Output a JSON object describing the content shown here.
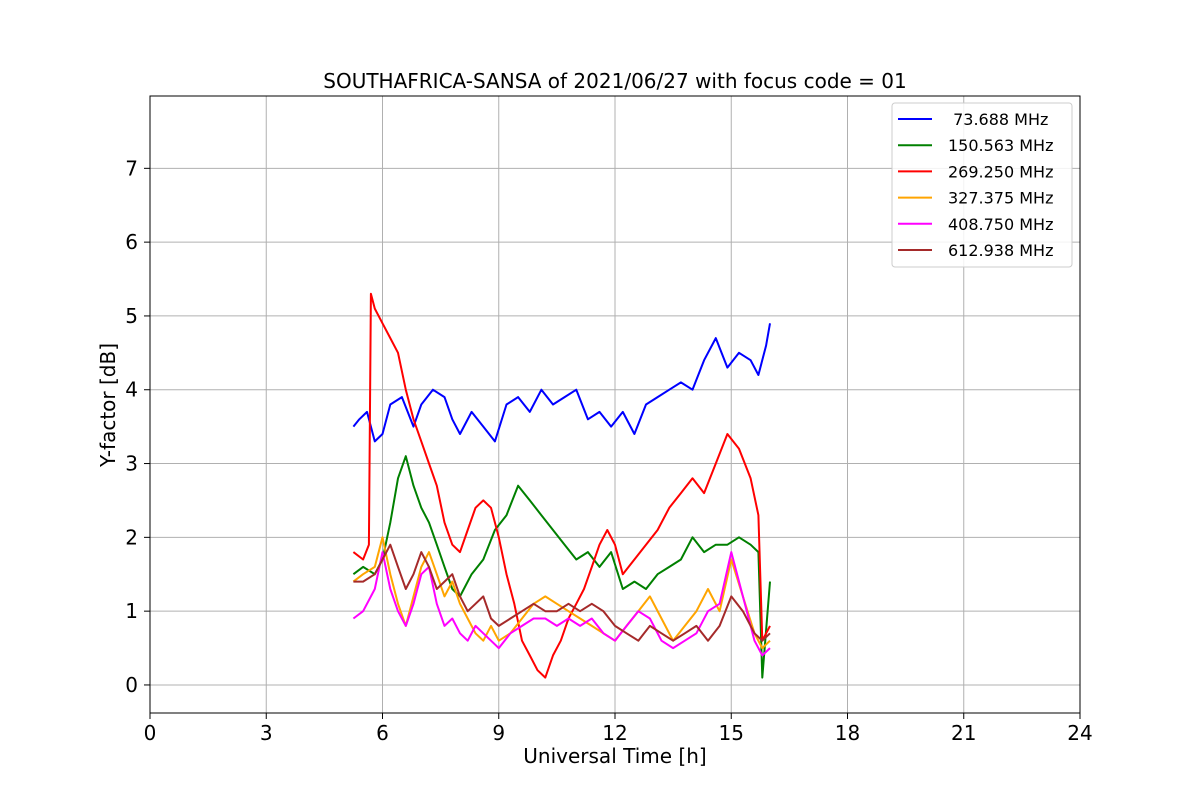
{
  "chart_data": {
    "type": "line",
    "title": "SOUTHAFRICA-SANSA of 2021/06/27 with focus code = 01",
    "xlabel": "Universal Time [h]",
    "ylabel": "Y-factor [dB]",
    "xlim": [
      0,
      24
    ],
    "ylim": [
      -0.38,
      7.98
    ],
    "xticks": [
      0,
      3,
      6,
      9,
      12,
      15,
      18,
      21,
      24
    ],
    "xtick_labels": [
      "0",
      "3",
      "6",
      "9",
      "12",
      "15",
      "18",
      "21",
      "24"
    ],
    "yticks": [
      0,
      1,
      2,
      3,
      4,
      5,
      6,
      7
    ],
    "ytick_labels": [
      "0",
      "1",
      "2",
      "3",
      "4",
      "5",
      "6",
      "7"
    ],
    "grid": true,
    "legend_position": "top-right",
    "series": [
      {
        "name": " 73.688 MHz",
        "color": "#0000ff",
        "x": [
          5.25,
          5.4,
          5.6,
          5.8,
          6.0,
          6.2,
          6.5,
          6.8,
          7.0,
          7.3,
          7.6,
          7.8,
          8.0,
          8.3,
          8.6,
          8.9,
          9.2,
          9.5,
          9.8,
          10.1,
          10.4,
          10.7,
          11.0,
          11.3,
          11.6,
          11.9,
          12.2,
          12.5,
          12.8,
          13.1,
          13.4,
          13.7,
          14.0,
          14.3,
          14.6,
          14.9,
          15.2,
          15.5,
          15.7,
          15.9,
          16.0
        ],
        "y": [
          3.5,
          3.6,
          3.7,
          3.3,
          3.4,
          3.8,
          3.9,
          3.5,
          3.8,
          4.0,
          3.9,
          3.6,
          3.4,
          3.7,
          3.5,
          3.3,
          3.8,
          3.9,
          3.7,
          4.0,
          3.8,
          3.9,
          4.0,
          3.6,
          3.7,
          3.5,
          3.7,
          3.4,
          3.8,
          3.9,
          4.0,
          4.1,
          4.0,
          4.4,
          4.7,
          4.3,
          4.5,
          4.4,
          4.2,
          4.6,
          4.9
        ]
      },
      {
        "name": "150.563 MHz",
        "color": "#008000",
        "x": [
          5.25,
          5.5,
          5.8,
          6.0,
          6.2,
          6.4,
          6.6,
          6.8,
          7.0,
          7.2,
          7.4,
          7.6,
          7.8,
          8.0,
          8.3,
          8.6,
          8.9,
          9.2,
          9.5,
          9.8,
          10.1,
          10.4,
          10.7,
          11.0,
          11.3,
          11.6,
          11.9,
          12.2,
          12.5,
          12.8,
          13.1,
          13.4,
          13.7,
          14.0,
          14.3,
          14.6,
          14.9,
          15.2,
          15.5,
          15.7,
          15.8,
          16.0
        ],
        "y": [
          1.5,
          1.6,
          1.5,
          1.7,
          2.2,
          2.8,
          3.1,
          2.7,
          2.4,
          2.2,
          1.9,
          1.6,
          1.3,
          1.2,
          1.5,
          1.7,
          2.1,
          2.3,
          2.7,
          2.5,
          2.3,
          2.1,
          1.9,
          1.7,
          1.8,
          1.6,
          1.8,
          1.3,
          1.4,
          1.3,
          1.5,
          1.6,
          1.7,
          2.0,
          1.8,
          1.9,
          1.9,
          2.0,
          1.9,
          1.8,
          0.1,
          1.4
        ]
      },
      {
        "name": "269.250 MHz",
        "color": "#ff0000",
        "x": [
          5.25,
          5.5,
          5.65,
          5.7,
          5.8,
          6.0,
          6.2,
          6.4,
          6.6,
          6.8,
          7.0,
          7.2,
          7.4,
          7.6,
          7.8,
          8.0,
          8.2,
          8.4,
          8.6,
          8.8,
          9.0,
          9.2,
          9.4,
          9.6,
          9.8,
          10.0,
          10.2,
          10.4,
          10.6,
          10.8,
          11.0,
          11.2,
          11.4,
          11.6,
          11.8,
          12.0,
          12.2,
          12.5,
          12.8,
          13.1,
          13.4,
          13.7,
          14.0,
          14.3,
          14.6,
          14.9,
          15.2,
          15.5,
          15.7,
          15.8,
          16.0
        ],
        "y": [
          1.8,
          1.7,
          1.9,
          5.3,
          5.1,
          4.9,
          4.7,
          4.5,
          4.0,
          3.6,
          3.3,
          3.0,
          2.7,
          2.2,
          1.9,
          1.8,
          2.1,
          2.4,
          2.5,
          2.4,
          2.0,
          1.5,
          1.1,
          0.6,
          0.4,
          0.2,
          0.1,
          0.4,
          0.6,
          0.9,
          1.1,
          1.3,
          1.6,
          1.9,
          2.1,
          1.9,
          1.5,
          1.7,
          1.9,
          2.1,
          2.4,
          2.6,
          2.8,
          2.6,
          3.0,
          3.4,
          3.2,
          2.8,
          2.3,
          0.6,
          0.8
        ]
      },
      {
        "name": "327.375 MHz",
        "color": "#ffa500",
        "x": [
          5.25,
          5.5,
          5.8,
          6.0,
          6.2,
          6.4,
          6.6,
          6.8,
          7.0,
          7.2,
          7.4,
          7.6,
          7.8,
          8.0,
          8.2,
          8.4,
          8.6,
          8.8,
          9.0,
          9.3,
          9.6,
          9.9,
          10.2,
          10.5,
          10.8,
          11.1,
          11.4,
          11.7,
          12.0,
          12.3,
          12.6,
          12.9,
          13.2,
          13.5,
          13.8,
          14.1,
          14.4,
          14.7,
          15.0,
          15.3,
          15.6,
          15.8,
          16.0
        ],
        "y": [
          1.4,
          1.5,
          1.6,
          2.0,
          1.5,
          1.1,
          0.8,
          1.2,
          1.6,
          1.8,
          1.5,
          1.2,
          1.4,
          1.1,
          0.9,
          0.7,
          0.6,
          0.8,
          0.6,
          0.7,
          0.9,
          1.1,
          1.2,
          1.1,
          1.0,
          0.9,
          0.8,
          0.7,
          0.6,
          0.8,
          1.0,
          1.2,
          0.9,
          0.6,
          0.8,
          1.0,
          1.3,
          1.0,
          1.7,
          1.2,
          0.7,
          0.5,
          0.6
        ]
      },
      {
        "name": "408.750 MHz",
        "color": "#ff00ff",
        "x": [
          5.25,
          5.5,
          5.8,
          6.0,
          6.2,
          6.4,
          6.6,
          6.8,
          7.0,
          7.2,
          7.4,
          7.6,
          7.8,
          8.0,
          8.2,
          8.4,
          8.6,
          8.8,
          9.0,
          9.3,
          9.6,
          9.9,
          10.2,
          10.5,
          10.8,
          11.1,
          11.4,
          11.7,
          12.0,
          12.3,
          12.6,
          12.9,
          13.2,
          13.5,
          13.8,
          14.1,
          14.4,
          14.7,
          15.0,
          15.3,
          15.6,
          15.8,
          16.0
        ],
        "y": [
          0.9,
          1.0,
          1.3,
          1.8,
          1.3,
          1.0,
          0.8,
          1.1,
          1.5,
          1.6,
          1.1,
          0.8,
          0.9,
          0.7,
          0.6,
          0.8,
          0.7,
          0.6,
          0.5,
          0.7,
          0.8,
          0.9,
          0.9,
          0.8,
          0.9,
          0.8,
          0.9,
          0.7,
          0.6,
          0.8,
          1.0,
          0.9,
          0.6,
          0.5,
          0.6,
          0.7,
          1.0,
          1.1,
          1.8,
          1.2,
          0.6,
          0.4,
          0.5
        ]
      },
      {
        "name": "612.938 MHz",
        "color": "#a52a2a",
        "x": [
          5.25,
          5.5,
          5.8,
          6.0,
          6.2,
          6.4,
          6.6,
          6.8,
          7.0,
          7.2,
          7.4,
          7.6,
          7.8,
          8.0,
          8.2,
          8.4,
          8.6,
          8.8,
          9.0,
          9.3,
          9.6,
          9.9,
          10.2,
          10.5,
          10.8,
          11.1,
          11.4,
          11.7,
          12.0,
          12.3,
          12.6,
          12.9,
          13.2,
          13.5,
          13.8,
          14.1,
          14.4,
          14.7,
          15.0,
          15.3,
          15.6,
          15.8,
          16.0
        ],
        "y": [
          1.4,
          1.4,
          1.5,
          1.7,
          1.9,
          1.6,
          1.3,
          1.5,
          1.8,
          1.6,
          1.3,
          1.4,
          1.5,
          1.2,
          1.0,
          1.1,
          1.2,
          0.9,
          0.8,
          0.9,
          1.0,
          1.1,
          1.0,
          1.0,
          1.1,
          1.0,
          1.1,
          1.0,
          0.8,
          0.7,
          0.6,
          0.8,
          0.7,
          0.6,
          0.7,
          0.8,
          0.6,
          0.8,
          1.2,
          1.0,
          0.7,
          0.6,
          0.7
        ]
      }
    ]
  }
}
